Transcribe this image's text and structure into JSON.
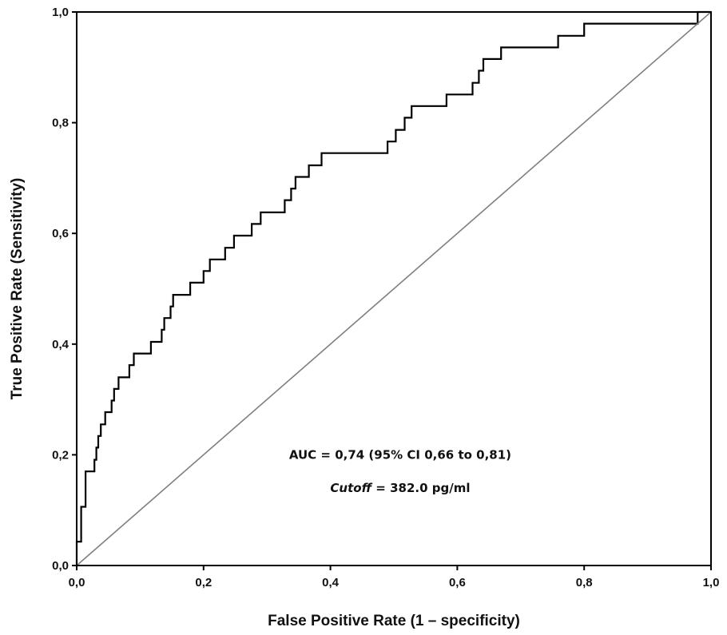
{
  "chart_data": {
    "type": "line",
    "xlabel": "False Positive Rate (1 – specificity)",
    "ylabel": "True Positive Rate (Sensitivity)",
    "xlim": [
      0,
      1
    ],
    "ylim": [
      0,
      1
    ],
    "x_ticks": [
      0,
      0.2,
      0.4,
      0.6,
      0.8,
      1
    ],
    "y_ticks": [
      0,
      0.2,
      0.4,
      0.6,
      0.8,
      1
    ],
    "x_tick_labels": [
      "0,0",
      "0,2",
      "0,4",
      "0,6",
      "0,8",
      "1,0"
    ],
    "y_tick_labels": [
      "0,0",
      "0,2",
      "0,4",
      "0,6",
      "0,8",
      "1,0"
    ],
    "grid": false,
    "series": [
      {
        "step": true,
        "color": "#000000",
        "points": [
          [
            0,
            0
          ],
          [
            0,
            0.043
          ],
          [
            0.007,
            0.043
          ],
          [
            0.007,
            0.106
          ],
          [
            0.014,
            0.106
          ],
          [
            0.014,
            0.17
          ],
          [
            0.028,
            0.17
          ],
          [
            0.028,
            0.191
          ],
          [
            0.031,
            0.191
          ],
          [
            0.031,
            0.213
          ],
          [
            0.034,
            0.213
          ],
          [
            0.034,
            0.234
          ],
          [
            0.038,
            0.234
          ],
          [
            0.038,
            0.255
          ],
          [
            0.045,
            0.255
          ],
          [
            0.045,
            0.277
          ],
          [
            0.055,
            0.277
          ],
          [
            0.055,
            0.298
          ],
          [
            0.059,
            0.298
          ],
          [
            0.059,
            0.319
          ],
          [
            0.066,
            0.319
          ],
          [
            0.066,
            0.34
          ],
          [
            0.083,
            0.34
          ],
          [
            0.083,
            0.362
          ],
          [
            0.09,
            0.362
          ],
          [
            0.09,
            0.383
          ],
          [
            0.117,
            0.383
          ],
          [
            0.117,
            0.404
          ],
          [
            0.134,
            0.404
          ],
          [
            0.134,
            0.426
          ],
          [
            0.138,
            0.426
          ],
          [
            0.138,
            0.447
          ],
          [
            0.148,
            0.447
          ],
          [
            0.148,
            0.468
          ],
          [
            0.152,
            0.468
          ],
          [
            0.152,
            0.489
          ],
          [
            0.179,
            0.489
          ],
          [
            0.179,
            0.511
          ],
          [
            0.2,
            0.511
          ],
          [
            0.2,
            0.532
          ],
          [
            0.21,
            0.532
          ],
          [
            0.21,
            0.553
          ],
          [
            0.234,
            0.553
          ],
          [
            0.234,
            0.574
          ],
          [
            0.248,
            0.574
          ],
          [
            0.248,
            0.596
          ],
          [
            0.276,
            0.596
          ],
          [
            0.276,
            0.617
          ],
          [
            0.29,
            0.617
          ],
          [
            0.29,
            0.638
          ],
          [
            0.328,
            0.638
          ],
          [
            0.328,
            0.66
          ],
          [
            0.338,
            0.66
          ],
          [
            0.338,
            0.681
          ],
          [
            0.345,
            0.681
          ],
          [
            0.345,
            0.702
          ],
          [
            0.366,
            0.702
          ],
          [
            0.366,
            0.723
          ],
          [
            0.386,
            0.723
          ],
          [
            0.386,
            0.745
          ],
          [
            0.49,
            0.745
          ],
          [
            0.49,
            0.766
          ],
          [
            0.503,
            0.766
          ],
          [
            0.503,
            0.787
          ],
          [
            0.517,
            0.787
          ],
          [
            0.517,
            0.809
          ],
          [
            0.528,
            0.809
          ],
          [
            0.528,
            0.83
          ],
          [
            0.583,
            0.83
          ],
          [
            0.583,
            0.851
          ],
          [
            0.624,
            0.851
          ],
          [
            0.624,
            0.872
          ],
          [
            0.634,
            0.872
          ],
          [
            0.634,
            0.894
          ],
          [
            0.641,
            0.894
          ],
          [
            0.641,
            0.915
          ],
          [
            0.669,
            0.915
          ],
          [
            0.669,
            0.936
          ],
          [
            0.759,
            0.936
          ],
          [
            0.759,
            0.957
          ],
          [
            0.8,
            0.957
          ],
          [
            0.8,
            0.979
          ],
          [
            0.979,
            0.979
          ],
          [
            0.979,
            1
          ],
          [
            1,
            1
          ]
        ]
      },
      {
        "reference": true,
        "color": "#7f7f7f",
        "points": [
          [
            0,
            0
          ],
          [
            1,
            1
          ]
        ]
      }
    ],
    "annotations": [
      {
        "text": "AUC = 0,74 (95% CI 0,66 to 0,81)",
        "x": 0.51,
        "y": 0.2
      },
      {
        "label_italic": "Cutoff",
        "label_rest": " = 382.0 pg/ml",
        "x": 0.51,
        "y": 0.14
      }
    ]
  }
}
